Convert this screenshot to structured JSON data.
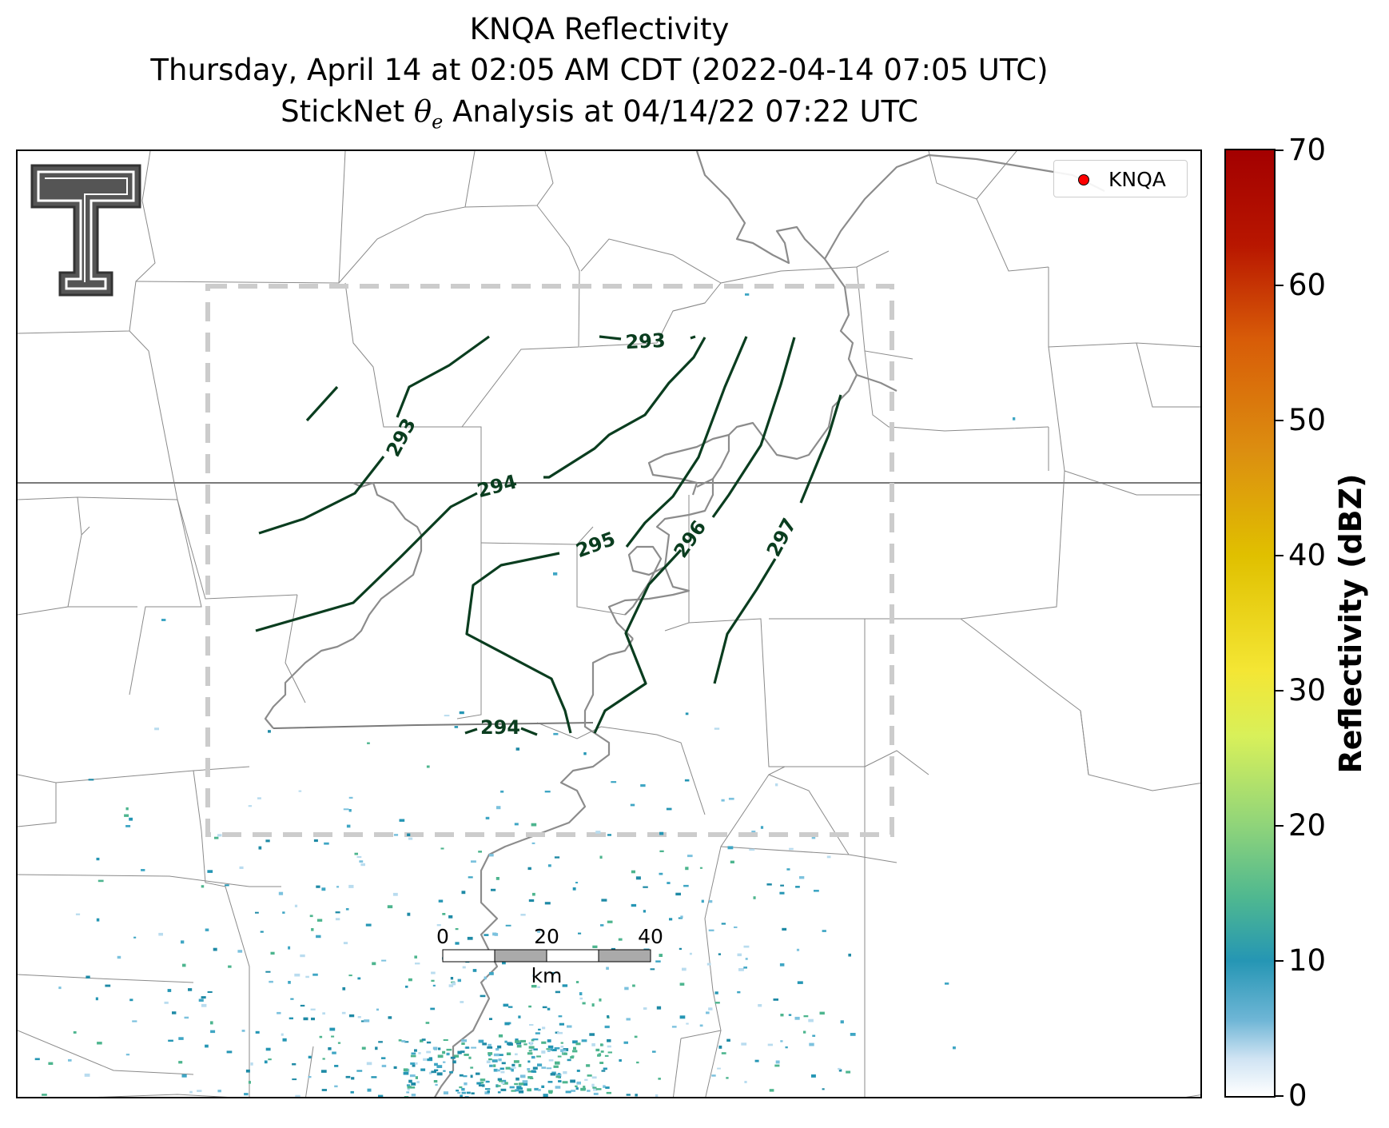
{
  "title": {
    "line1": "KNQA Reflectivity",
    "line2": "Thursday, April 14 at 02:05 AM CDT (2022-04-14 07:05 UTC)",
    "line3_prefix": "StickNet ",
    "line3_symbol": "θ",
    "line3_subscript": "e",
    "line3_suffix": " Analysis at 04/14/22 07:22 UTC"
  },
  "legend": {
    "label": "KNQA",
    "marker_color": "#ff0000"
  },
  "colorbar": {
    "label": "Reflectivity (dBZ)",
    "ticks": [
      "0",
      "10",
      "20",
      "30",
      "40",
      "50",
      "60",
      "70"
    ],
    "range": [
      0,
      70
    ]
  },
  "contours": {
    "color": "#0a3d1f",
    "labels": [
      "293",
      "293",
      "294",
      "294",
      "295",
      "296",
      "297"
    ]
  },
  "scale_bar": {
    "labels": [
      "0",
      "20",
      "40"
    ],
    "unit": "km"
  },
  "logo": {
    "name": "Texas Tech Double T"
  },
  "analysis_box": {
    "style": "dashed",
    "color": "#cccccc"
  }
}
